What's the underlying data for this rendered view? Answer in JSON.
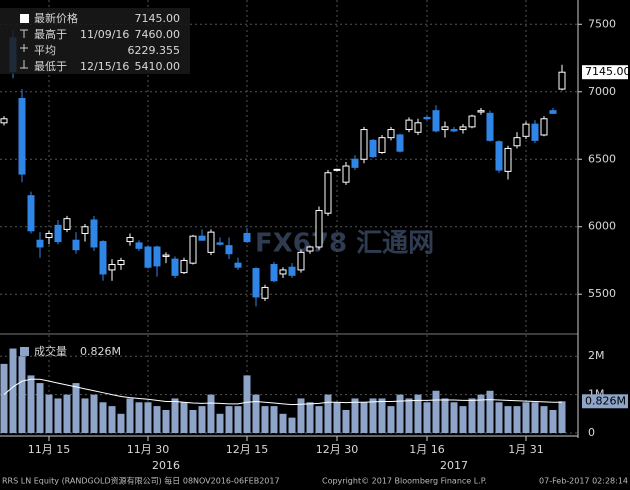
{
  "chart_data": [
    {
      "type": "candlestick",
      "legend": [
        {
          "name": "最新价格",
          "value_label": "7145.00"
        },
        {
          "name": "最高于",
          "date": "11/09/16",
          "value_label": "7460.00"
        },
        {
          "name": "平均",
          "value_label": "6229.355"
        },
        {
          "name": "最低于",
          "date": "12/15/16",
          "value_label": "5410.00"
        }
      ],
      "watermark": "FX678 汇通网",
      "categories": [
        null,
        null,
        null,
        null,
        null,
        "11月 15",
        null,
        null,
        null,
        null,
        null,
        null,
        null,
        null,
        null,
        null,
        "11月 30",
        null,
        null,
        null,
        null,
        null,
        null,
        null,
        null,
        null,
        null,
        "12月 15",
        null,
        null,
        null,
        null,
        null,
        null,
        null,
        null,
        null,
        "12月 30",
        null,
        null,
        null,
        null,
        null,
        null,
        null,
        null,
        null,
        "1月 16",
        null,
        null,
        null,
        null,
        null,
        null,
        null,
        null,
        null,
        null,
        "1月 31",
        null,
        null,
        null,
        null
      ],
      "year_categories": [
        null,
        null,
        null,
        null,
        null,
        null,
        null,
        null,
        null,
        null,
        null,
        null,
        null,
        null,
        null,
        null,
        null,
        null,
        "2016",
        null,
        null,
        null,
        null,
        null,
        null,
        null,
        null,
        null,
        null,
        null,
        null,
        null,
        null,
        null,
        null,
        null,
        null,
        null,
        null,
        null,
        null,
        null,
        null,
        null,
        null,
        null,
        null,
        null,
        null,
        null,
        "2017",
        null,
        null,
        null,
        null,
        null,
        null,
        null,
        null,
        null,
        null,
        null,
        null
      ],
      "open": [
        6770,
        7400,
        6950,
        6230,
        5900,
        5920,
        6010,
        5980,
        5900,
        5950,
        6050,
        5890,
        5680,
        5720,
        5890,
        5880,
        5850,
        5850,
        5780,
        5760,
        5660,
        5730,
        5930,
        5810,
        5880,
        5860,
        5730,
        5950,
        5690,
        5470,
        5720,
        5650,
        5700,
        5680,
        5820,
        5850,
        6100,
        6420,
        6330,
        6500,
        6500,
        6640,
        6550,
        6660,
        6680,
        6720,
        6700,
        6810,
        6860,
        6720,
        6720,
        6720,
        6740,
        6850,
        6840,
        6630,
        6410,
        6600,
        6670,
        6760,
        6680,
        6860,
        7020
      ],
      "high": [
        6820,
        7460,
        7020,
        6260,
        5960,
        5970,
        6050,
        6080,
        5960,
        6020,
        6080,
        5900,
        5760,
        5770,
        5950,
        5900,
        5860,
        5860,
        5810,
        5780,
        5770,
        5940,
        5980,
        5980,
        5920,
        5920,
        5770,
        5990,
        5700,
        5570,
        5740,
        5700,
        5730,
        5830,
        5860,
        6150,
        6420,
        6430,
        6480,
        6530,
        6740,
        6650,
        6680,
        6740,
        6690,
        6810,
        6800,
        6830,
        6900,
        6780,
        6740,
        6760,
        6830,
        6880,
        6860,
        6640,
        6600,
        6700,
        6780,
        6790,
        6820,
        6880,
        7200
      ],
      "low": [
        6750,
        7100,
        6330,
        5950,
        5770,
        5870,
        5870,
        5960,
        5800,
        5890,
        5820,
        5600,
        5600,
        5680,
        5860,
        5820,
        5690,
        5630,
        5730,
        5620,
        5650,
        5720,
        5900,
        5790,
        5860,
        5760,
        5680,
        5880,
        5410,
        5450,
        5590,
        5620,
        5620,
        5660,
        5800,
        5830,
        6080,
        6410,
        6310,
        6420,
        6470,
        6510,
        6540,
        6640,
        6550,
        6700,
        6680,
        6790,
        6700,
        6660,
        6700,
        6690,
        6730,
        6830,
        6630,
        6400,
        6350,
        6580,
        6650,
        6620,
        6670,
        6850,
        7010
      ],
      "close": [
        6800,
        7150,
        6390,
        5970,
        5850,
        5950,
        5890,
        6060,
        5830,
        6000,
        5850,
        5650,
        5720,
        5750,
        5920,
        5840,
        5700,
        5710,
        5790,
        5640,
        5750,
        5930,
        5900,
        5960,
        5870,
        5800,
        5700,
        5890,
        5480,
        5550,
        5600,
        5680,
        5640,
        5810,
        5850,
        6120,
        6400,
        6425,
        6450,
        6440,
        6720,
        6520,
        6660,
        6720,
        6560,
        6790,
        6770,
        6800,
        6710,
        6740,
        6710,
        6740,
        6820,
        6860,
        6640,
        6420,
        6580,
        6660,
        6760,
        6640,
        6800,
        6840,
        7145
      ],
      "up_color": "#ffffff",
      "down_color": "#2f86e6",
      "last_price": {
        "value": 7145,
        "label": "7145.00"
      },
      "ylim": [
        5220,
        7680
      ],
      "yticks": [
        5500,
        6000,
        6500,
        7000,
        7500
      ],
      "grid": true
    },
    {
      "type": "bar",
      "title": "成交量",
      "series": [
        {
          "name": "成交量",
          "color": "#8ea5c9",
          "values": [
            1.8,
            2.2,
            2.0,
            1.5,
            1.3,
            1.0,
            0.9,
            1.0,
            1.3,
            0.9,
            1.0,
            0.8,
            0.7,
            0.5,
            0.9,
            0.8,
            0.8,
            0.7,
            0.6,
            0.9,
            0.8,
            0.6,
            0.7,
            1.0,
            0.5,
            0.7,
            0.7,
            1.5,
            1.0,
            0.7,
            0.7,
            0.5,
            0.4,
            0.9,
            0.8,
            0.7,
            1.0,
            0.8,
            0.6,
            0.9,
            0.8,
            0.9,
            0.9,
            0.7,
            1.0,
            0.9,
            1.0,
            0.8,
            1.1,
            0.9,
            0.8,
            0.7,
            0.9,
            1.0,
            1.1,
            0.8,
            0.7,
            0.7,
            0.8,
            0.8,
            0.7,
            0.6,
            0.826
          ]
        },
        {
          "name": "average",
          "type": "line",
          "color": "#ffffff",
          "values": [
            1.0,
            1.2,
            1.35,
            1.4,
            1.4,
            1.35,
            1.3,
            1.25,
            1.2,
            1.15,
            1.1,
            1.05,
            1.0,
            0.95,
            0.92,
            0.9,
            0.88,
            0.85,
            0.82,
            0.82,
            0.8,
            0.78,
            0.77,
            0.78,
            0.77,
            0.76,
            0.76,
            0.8,
            0.82,
            0.8,
            0.78,
            0.76,
            0.74,
            0.75,
            0.76,
            0.77,
            0.8,
            0.8,
            0.79,
            0.8,
            0.8,
            0.81,
            0.82,
            0.82,
            0.83,
            0.84,
            0.85,
            0.85,
            0.86,
            0.86,
            0.86,
            0.85,
            0.85,
            0.86,
            0.87,
            0.86,
            0.85,
            0.84,
            0.83,
            0.82,
            0.81,
            0.8,
            0.8
          ]
        }
      ],
      "last_volume": {
        "value": 0.826,
        "label": "0.826M"
      },
      "ylim": [
        0,
        2.5
      ],
      "yticks": [
        0,
        {
          "value": 1,
          "label": "1M"
        },
        {
          "value": 2,
          "label": "2M"
        }
      ]
    }
  ],
  "footer": {
    "left": "RRS LN Equity (RANDGOLD资源有限公司)   每日 08NOV2016-06FEB2017",
    "middle": "Copyright© 2017 Bloomberg Finance L.P.",
    "right": "07-Feb-2017 02:28:14"
  }
}
